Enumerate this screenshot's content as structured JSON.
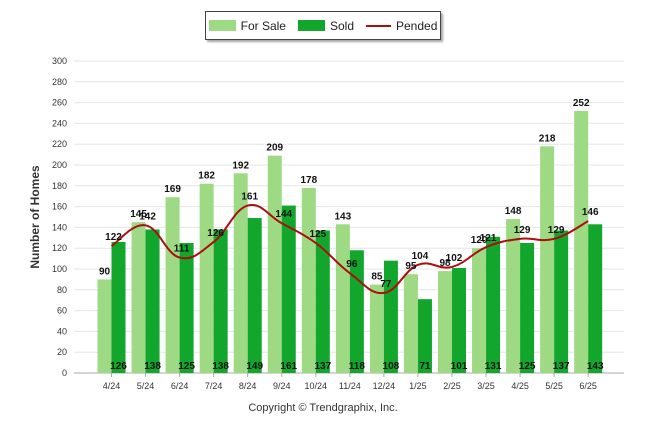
{
  "footer": {
    "copyright": "Copyright © Trendgraphix, Inc."
  },
  "colors": {
    "for_sale": "#9ed984",
    "sold": "#12a62d",
    "pended": "#aa0e0e"
  },
  "chart_data": {
    "type": "bar",
    "title": "",
    "xlabel": "",
    "ylabel": "Number of Homes",
    "ylim": [
      0,
      300
    ],
    "yticks": [
      0,
      20,
      40,
      60,
      80,
      100,
      120,
      140,
      160,
      180,
      200,
      220,
      240,
      260,
      280,
      300
    ],
    "grid": true,
    "legend_position": "top-center",
    "categories": [
      "4/24",
      "5/24",
      "6/24",
      "7/24",
      "8/24",
      "9/24",
      "10/24",
      "11/24",
      "12/24",
      "1/25",
      "2/25",
      "3/25",
      "4/25",
      "5/25",
      "6/25"
    ],
    "series": [
      {
        "name": "For Sale",
        "type": "bar",
        "color": "#9ed984",
        "values": [
          90,
          145,
          169,
          182,
          192,
          209,
          178,
          143,
          85,
          95,
          98,
          120,
          148,
          218,
          252
        ]
      },
      {
        "name": "Sold",
        "type": "bar",
        "color": "#12a62d",
        "values": [
          126,
          138,
          125,
          138,
          149,
          161,
          137,
          118,
          108,
          71,
          101,
          131,
          125,
          137,
          143
        ]
      },
      {
        "name": "Pended",
        "type": "line",
        "color": "#aa0e0e",
        "values": [
          122,
          142,
          111,
          126,
          161,
          144,
          125,
          96,
          77,
          104,
          102,
          121,
          129,
          129,
          146
        ]
      }
    ]
  }
}
